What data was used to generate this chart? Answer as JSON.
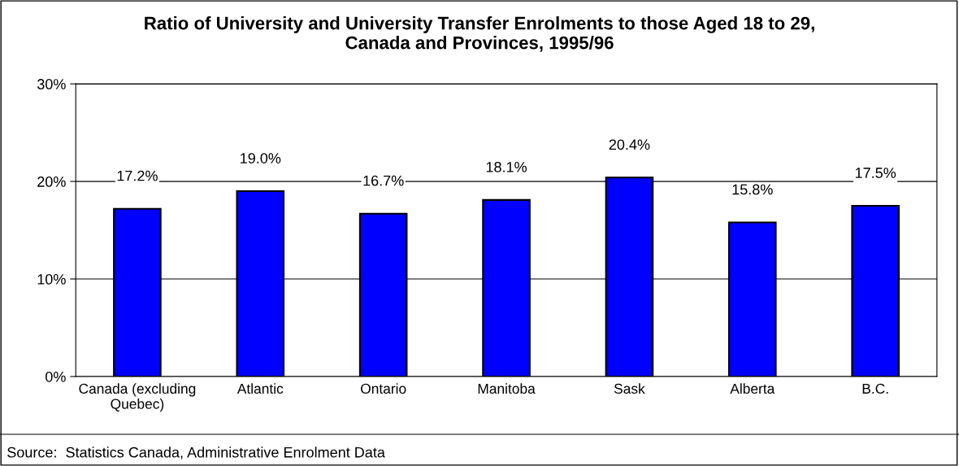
{
  "chart_data": {
    "type": "bar",
    "title": "Ratio of University and University Transfer Enrolments to those Aged 18 to 29,\nCanada and Provinces, 1995/96",
    "categories": [
      "Canada (excluding\nQuebec)",
      "Atlantic",
      "Ontario",
      "Manitoba",
      "Sask",
      "Alberta",
      "B.C."
    ],
    "values": [
      17.2,
      19.0,
      16.7,
      18.1,
      20.4,
      15.8,
      17.5
    ],
    "value_labels": [
      "17.2%",
      "19.0%",
      "16.7%",
      "18.1%",
      "20.4%",
      "15.8%",
      "17.5%"
    ],
    "color": "#0000ff",
    "ylim": [
      0,
      30
    ],
    "yticks": [
      {
        "value": 0,
        "label": "0%"
      },
      {
        "value": 10,
        "label": "10%"
      },
      {
        "value": 20,
        "label": "20%"
      },
      {
        "value": 30,
        "label": "30%"
      }
    ],
    "grid": "y",
    "annotations": [
      "Source:  Statistics Canada, Administrative Enrolment Data"
    ]
  }
}
